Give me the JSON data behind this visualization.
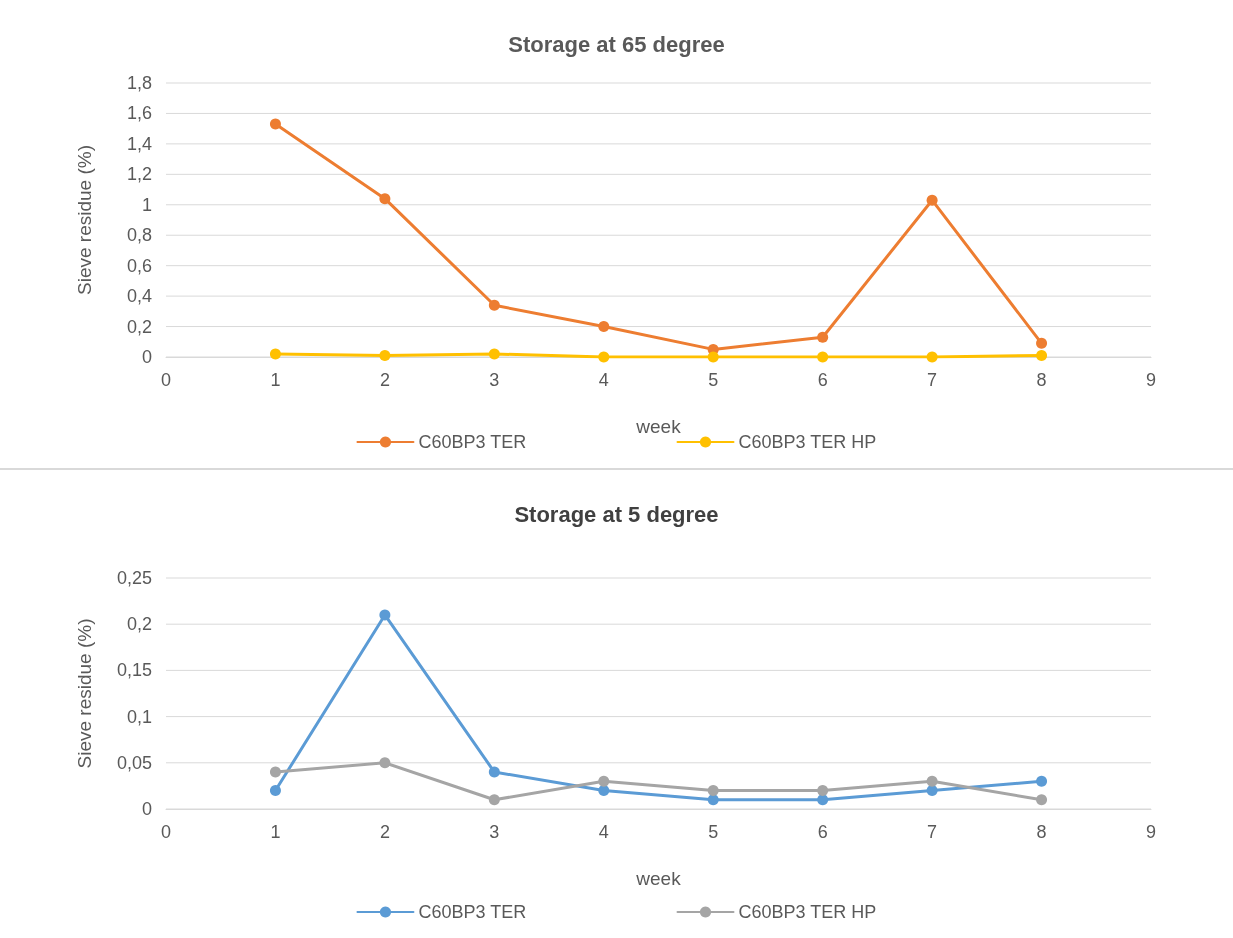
{
  "chart_data": [
    {
      "type": "line",
      "title": "Storage at 65 degree",
      "xlabel": "week",
      "ylabel": "Sieve residue (%)",
      "x": [
        1,
        2,
        3,
        4,
        5,
        6,
        7,
        8
      ],
      "xlim": [
        0,
        9
      ],
      "xticks": [
        {
          "value": 0,
          "label": "0"
        },
        1,
        2,
        3,
        4,
        5,
        6,
        7,
        8,
        9
      ],
      "ylim": [
        0,
        1.8
      ],
      "yticks": [
        {
          "value": 0,
          "label": "0"
        },
        {
          "value": 0.2,
          "label": "0,2"
        },
        {
          "value": 0.4,
          "label": "0,4"
        },
        {
          "value": 0.6,
          "label": "0,6"
        },
        {
          "value": 0.8,
          "label": "0,8"
        },
        1,
        {
          "value": 1.2,
          "label": "1,2"
        },
        {
          "value": 1.4,
          "label": "1,4"
        },
        {
          "value": 1.6,
          "label": "1,6"
        },
        {
          "value": 1.8,
          "label": "1,8"
        }
      ],
      "grid": "y",
      "legend": "bottom",
      "marker": "circle",
      "line_style": "solid",
      "series": [
        {
          "name": "C60BP3 TER",
          "color": "#ed7d31",
          "values": [
            1.53,
            1.04,
            0.34,
            0.2,
            0.05,
            0.13,
            1.03,
            0.09
          ]
        },
        {
          "name": "C60BP3 TER HP",
          "color": "#ffc000",
          "values": [
            0.02,
            0.01,
            0.02,
            0,
            0,
            0,
            0,
            0.01
          ]
        }
      ]
    },
    {
      "type": "line",
      "title": "Storage at 5 degree",
      "xlabel": "week",
      "ylabel": "Sieve residue (%)",
      "x": [
        1,
        2,
        3,
        4,
        5,
        6,
        7,
        8
      ],
      "xlim": [
        0,
        9
      ],
      "xticks": [
        {
          "value": 0,
          "label": "0"
        },
        1,
        2,
        3,
        4,
        5,
        6,
        7,
        8,
        9
      ],
      "ylim": [
        0,
        0.25
      ],
      "yticks": [
        {
          "value": 0,
          "label": "0"
        },
        {
          "value": 0.05,
          "label": "0,05"
        },
        {
          "value": 0.1,
          "label": "0,1"
        },
        {
          "value": 0.15,
          "label": "0,15"
        },
        {
          "value": 0.2,
          "label": "0,2"
        },
        {
          "value": 0.25,
          "label": "0,25"
        }
      ],
      "grid": "y",
      "legend": "bottom",
      "marker": "circle",
      "line_style": "solid",
      "series": [
        {
          "name": "C60BP3 TER",
          "color": "#5b9bd5",
          "values": [
            0.02,
            0.21,
            0.04,
            0.02,
            0.01,
            0.01,
            0.02,
            0.03
          ]
        },
        {
          "name": "C60BP3 TER HP",
          "color": "#a5a5a5",
          "values": [
            0.04,
            0.05,
            0.01,
            0.03,
            0.02,
            0.02,
            0.03,
            0.01
          ]
        }
      ]
    }
  ]
}
